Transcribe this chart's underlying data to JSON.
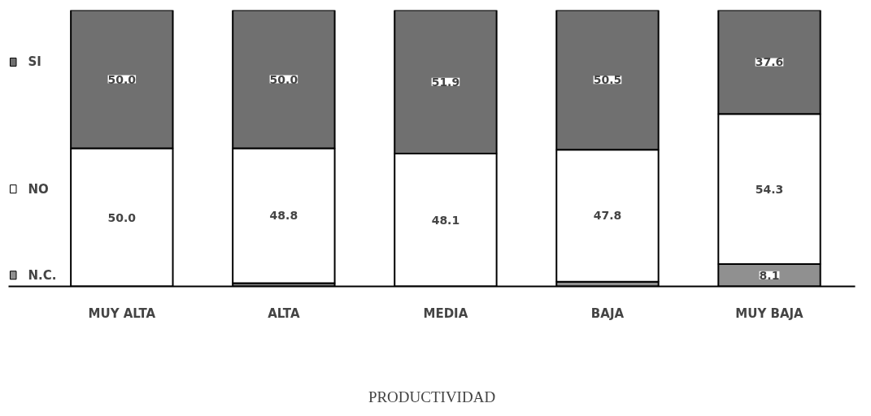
{
  "chart_data": {
    "type": "bar",
    "stacked": true,
    "xlabel": "PRODUCTIVIDAD",
    "categories": [
      "MUY ALTA",
      "ALTA",
      "MEDIA",
      "BAJA",
      "MUY BAJA"
    ],
    "ylim": [
      0,
      100
    ],
    "tick_labels": "x",
    "grid": false,
    "legend": "left",
    "series": [
      {
        "name": "N.C.",
        "color": "#909090",
        "values": [
          0,
          1.2,
          0,
          1.7,
          8.1
        ],
        "value_labels": [
          null,
          null,
          null,
          null,
          "8.1"
        ]
      },
      {
        "name": "NO",
        "color": "#ffffff",
        "values": [
          50.0,
          48.8,
          48.1,
          47.8,
          54.3
        ],
        "value_labels": [
          "50.0",
          "48.8",
          "48.1",
          "47.8",
          "54.3"
        ]
      },
      {
        "name": "SI",
        "color": "#707070",
        "values": [
          50.0,
          50.0,
          51.9,
          50.5,
          37.6
        ],
        "value_labels": [
          "50.0",
          "50.0",
          "51.9",
          "50.5",
          "37.6"
        ]
      }
    ]
  }
}
